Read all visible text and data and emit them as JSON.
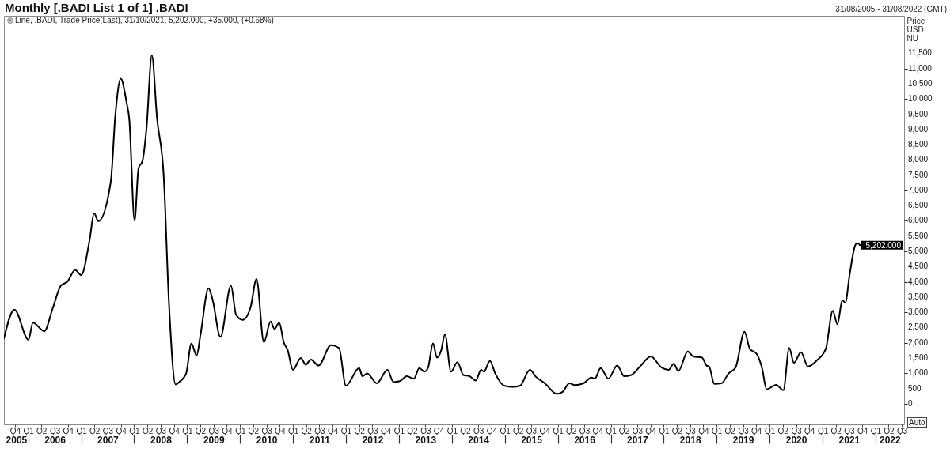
{
  "chart_data": {
    "type": "line",
    "title": "Monthly [.BADI List 1 of 1] .BADI",
    "subtitle": "Line, .BADI, Trade Price(Last), 31/10/2021, 5,202.000, +35.000, (+0.68%)",
    "ylabel": "Price USD NU",
    "annotations": [
      "31/08/2005 - 31/08/2022 (GMT)",
      "Auto",
      "5,202.000"
    ],
    "x": [
      "2005-08-31",
      "2005-11-11",
      "2006-02-16",
      "2006-03-19",
      "2006-06-05",
      "2006-08-03",
      "2006-09-27",
      "2006-11-11",
      "2007-01-04",
      "2007-02-15",
      "2007-04-14",
      "2007-05-15",
      "2007-06-13",
      "2007-09-07",
      "2007-10-08",
      "2007-11-15",
      "2007-12-25",
      "2008-01-12",
      "2008-02-18",
      "2008-03-16",
      "2008-04-13",
      "2008-05-10",
      "2008-06-16",
      "2008-07-22",
      "2008-09-06",
      "2008-10-12",
      "2008-11-27",
      "2008-12-24",
      "2009-02-07",
      "2009-03-16",
      "2009-04-21",
      "2009-05-18",
      "2009-07-12",
      "2009-08-08",
      "2009-10-02",
      "2009-12-14",
      "2010-01-18",
      "2010-03-05",
      "2010-04-29",
      "2010-06-08",
      "2010-07-29",
      "2010-09-13",
      "2010-10-10",
      "2010-11-12",
      "2010-12-13",
      "2011-01-09",
      "2011-02-14",
      "2011-04-10",
      "2011-05-14",
      "2011-06-18",
      "2011-08-10",
      "2011-11-04",
      "2011-12-29",
      "2012-02-15",
      "2012-05-16",
      "2012-06-08",
      "2012-07-11",
      "2012-09-15",
      "2012-11-27",
      "2013-01-08",
      "2013-02-20",
      "2013-04-10",
      "2013-05-29",
      "2013-07-05",
      "2013-08-10",
      "2013-09-03",
      "2013-10-08",
      "2013-11-04",
      "2013-12-03",
      "2013-12-29",
      "2014-02-09",
      "2014-03-25",
      "2014-05-05",
      "2014-06-18",
      "2014-07-30",
      "2014-09-04",
      "2014-09-24",
      "2014-11-04",
      "2014-12-11",
      "2015-02-10",
      "2015-04-12",
      "2015-05-31",
      "2015-08-07",
      "2015-09-18",
      "2015-11-18",
      "2016-02-10",
      "2016-03-18",
      "2016-05-06",
      "2016-06-11",
      "2016-08-11",
      "2016-10-04",
      "2016-10-28",
      "2016-12-07",
      "2017-01-29",
      "2017-03-31",
      "2017-05-19",
      "2017-07-06",
      "2017-09-05",
      "2017-11-18",
      "2018-01-30",
      "2018-03-20",
      "2018-04-25",
      "2018-05-27",
      "2018-07-31",
      "2018-09-06",
      "2018-11-06",
      "2018-12-08",
      "2018-12-25",
      "2019-01-30",
      "2019-03-21",
      "2019-05-08",
      "2019-06-26",
      "2019-08-26",
      "2019-10-02",
      "2019-11-19",
      "2019-12-25",
      "2020-01-26",
      "2020-04-01",
      "2020-05-20",
      "2020-06-30",
      "2020-08-01",
      "2020-09-19",
      "2020-11-06",
      "2021-01-06",
      "2021-03-09",
      "2021-04-26",
      "2021-05-28",
      "2021-07-01",
      "2021-07-21",
      "2021-08-21",
      "2021-09-26",
      "2021-10-11",
      "2021-10-31"
    ],
    "series": [
      {
        "color": "#000000",
        "values": [
          2140,
          3090,
          2100,
          2660,
          2380,
          3140,
          3870,
          4000,
          4390,
          4220,
          5380,
          6250,
          5990,
          7290,
          9450,
          10670,
          9880,
          9360,
          6010,
          7720,
          7980,
          9020,
          11430,
          9360,
          7460,
          3310,
          630,
          720,
          980,
          1970,
          1580,
          2270,
          3790,
          3440,
          2190,
          3870,
          2920,
          2750,
          3180,
          4090,
          2010,
          2700,
          2450,
          2660,
          2010,
          1760,
          1110,
          1500,
          1280,
          1450,
          1250,
          1920,
          1830,
          590,
          1170,
          900,
          990,
          670,
          1110,
          710,
          740,
          900,
          820,
          1170,
          1050,
          1170,
          1980,
          1510,
          1750,
          2270,
          1050,
          1360,
          940,
          900,
          760,
          1110,
          1050,
          1400,
          990,
          590,
          550,
          590,
          1110,
          880,
          670,
          320,
          380,
          670,
          610,
          670,
          860,
          820,
          1170,
          820,
          1250,
          900,
          940,
          1220,
          1550,
          1190,
          1110,
          1310,
          1070,
          1710,
          1550,
          1510,
          1250,
          1220,
          650,
          670,
          990,
          1190,
          2360,
          1800,
          1630,
          1170,
          470,
          620,
          440,
          1830,
          1340,
          1690,
          1220,
          1420,
          1800,
          3050,
          2610,
          3400,
          3310,
          4260,
          5170,
          5270,
          5202
        ]
      }
    ],
    "xlim": [
      "2005-08-31",
      "2022-08-31"
    ],
    "xticks": [
      {
        "value": "2005-11-15",
        "label": "Q4"
      },
      {
        "value": "2006-02-15",
        "label": "Q1"
      },
      {
        "value": "2006-05-16",
        "label": "Q2"
      },
      {
        "value": "2006-08-16",
        "label": "Q3"
      },
      {
        "value": "2006-11-15",
        "label": "Q4"
      },
      {
        "value": "2007-02-15",
        "label": "Q1"
      },
      {
        "value": "2007-05-16",
        "label": "Q2"
      },
      {
        "value": "2007-08-16",
        "label": "Q3"
      },
      {
        "value": "2007-11-15",
        "label": "Q4"
      },
      {
        "value": "2008-02-15",
        "label": "Q1"
      },
      {
        "value": "2008-05-16",
        "label": "Q2"
      },
      {
        "value": "2008-08-16",
        "label": "Q3"
      },
      {
        "value": "2008-11-15",
        "label": "Q4"
      },
      {
        "value": "2009-02-15",
        "label": "Q1"
      },
      {
        "value": "2009-05-16",
        "label": "Q2"
      },
      {
        "value": "2009-08-16",
        "label": "Q3"
      },
      {
        "value": "2009-11-15",
        "label": "Q4"
      },
      {
        "value": "2010-02-15",
        "label": "Q1"
      },
      {
        "value": "2010-05-16",
        "label": "Q2"
      },
      {
        "value": "2010-08-16",
        "label": "Q3"
      },
      {
        "value": "2010-11-15",
        "label": "Q4"
      },
      {
        "value": "2011-02-15",
        "label": "Q1"
      },
      {
        "value": "2011-05-16",
        "label": "Q2"
      },
      {
        "value": "2011-08-16",
        "label": "Q3"
      },
      {
        "value": "2011-11-15",
        "label": "Q4"
      },
      {
        "value": "2012-02-15",
        "label": "Q1"
      },
      {
        "value": "2012-05-16",
        "label": "Q2"
      },
      {
        "value": "2012-08-16",
        "label": "Q3"
      },
      {
        "value": "2012-11-15",
        "label": "Q4"
      },
      {
        "value": "2013-02-15",
        "label": "Q1"
      },
      {
        "value": "2013-05-16",
        "label": "Q2"
      },
      {
        "value": "2013-08-16",
        "label": "Q3"
      },
      {
        "value": "2013-11-15",
        "label": "Q4"
      },
      {
        "value": "2014-02-15",
        "label": "Q1"
      },
      {
        "value": "2014-05-16",
        "label": "Q2"
      },
      {
        "value": "2014-08-16",
        "label": "Q3"
      },
      {
        "value": "2014-11-15",
        "label": "Q4"
      },
      {
        "value": "2015-02-15",
        "label": "Q1"
      },
      {
        "value": "2015-05-16",
        "label": "Q2"
      },
      {
        "value": "2015-08-16",
        "label": "Q3"
      },
      {
        "value": "2015-11-15",
        "label": "Q4"
      },
      {
        "value": "2016-02-15",
        "label": "Q1"
      },
      {
        "value": "2016-05-16",
        "label": "Q2"
      },
      {
        "value": "2016-08-16",
        "label": "Q3"
      },
      {
        "value": "2016-11-15",
        "label": "Q4"
      },
      {
        "value": "2017-02-15",
        "label": "Q1"
      },
      {
        "value": "2017-05-16",
        "label": "Q2"
      },
      {
        "value": "2017-08-16",
        "label": "Q3"
      },
      {
        "value": "2017-11-15",
        "label": "Q4"
      },
      {
        "value": "2018-02-15",
        "label": "Q1"
      },
      {
        "value": "2018-05-16",
        "label": "Q2"
      },
      {
        "value": "2018-08-16",
        "label": "Q3"
      },
      {
        "value": "2018-11-15",
        "label": "Q4"
      },
      {
        "value": "2019-02-15",
        "label": "Q1"
      },
      {
        "value": "2019-05-16",
        "label": "Q2"
      },
      {
        "value": "2019-08-16",
        "label": "Q3"
      },
      {
        "value": "2019-11-15",
        "label": "Q4"
      },
      {
        "value": "2020-02-15",
        "label": "Q1"
      },
      {
        "value": "2020-05-16",
        "label": "Q2"
      },
      {
        "value": "2020-08-16",
        "label": "Q3"
      },
      {
        "value": "2020-11-15",
        "label": "Q4"
      },
      {
        "value": "2021-02-15",
        "label": "Q1"
      },
      {
        "value": "2021-05-16",
        "label": "Q2"
      },
      {
        "value": "2021-08-16",
        "label": "Q3"
      },
      {
        "value": "2021-11-15",
        "label": "Q4"
      },
      {
        "value": "2022-02-15",
        "label": "Q1"
      },
      {
        "value": "2022-05-16",
        "label": "Q2"
      },
      {
        "value": "2022-08-16",
        "label": "Q3"
      }
    ],
    "x2lim": [
      "2005-08-31",
      "2022-08-31"
    ],
    "x2ticks": [
      {
        "value": "2005-11-23",
        "label": "2005"
      },
      {
        "value": "2006-02-15",
        "label": null
      },
      {
        "value": "2006-08-16",
        "label": "2006"
      },
      {
        "value": "2007-02-15",
        "label": null
      },
      {
        "value": "2007-08-16",
        "label": "2007"
      },
      {
        "value": "2008-02-15",
        "label": null
      },
      {
        "value": "2008-08-16",
        "label": "2008"
      },
      {
        "value": "2009-02-15",
        "label": null
      },
      {
        "value": "2009-08-16",
        "label": "2009"
      },
      {
        "value": "2010-02-15",
        "label": null
      },
      {
        "value": "2010-08-16",
        "label": "2010"
      },
      {
        "value": "2011-02-15",
        "label": null
      },
      {
        "value": "2011-08-16",
        "label": "2011"
      },
      {
        "value": "2012-02-15",
        "label": null
      },
      {
        "value": "2012-08-16",
        "label": "2012"
      },
      {
        "value": "2013-02-15",
        "label": null
      },
      {
        "value": "2013-08-16",
        "label": "2013"
      },
      {
        "value": "2014-02-15",
        "label": null
      },
      {
        "value": "2014-08-16",
        "label": "2014"
      },
      {
        "value": "2015-02-15",
        "label": null
      },
      {
        "value": "2015-08-16",
        "label": "2015"
      },
      {
        "value": "2016-02-15",
        "label": null
      },
      {
        "value": "2016-08-16",
        "label": "2016"
      },
      {
        "value": "2017-02-15",
        "label": null
      },
      {
        "value": "2017-08-16",
        "label": "2017"
      },
      {
        "value": "2018-02-15",
        "label": null
      },
      {
        "value": "2018-08-16",
        "label": "2018"
      },
      {
        "value": "2019-02-15",
        "label": null
      },
      {
        "value": "2019-08-16",
        "label": "2019"
      },
      {
        "value": "2020-02-15",
        "label": null
      },
      {
        "value": "2020-08-16",
        "label": "2020"
      },
      {
        "value": "2021-02-15",
        "label": null
      },
      {
        "value": "2021-08-16",
        "label": "2021"
      },
      {
        "value": "2022-02-15",
        "label": null
      },
      {
        "value": "2022-05-24",
        "label": "2022"
      }
    ],
    "ylim": [
      -680,
      12730
    ],
    "yticks": [
      0,
      500,
      {
        "value": 1000,
        "label": "1,000"
      },
      {
        "value": 1500,
        "label": "1,500"
      },
      {
        "value": 2000,
        "label": "2,000"
      },
      {
        "value": 2500,
        "label": "2,500"
      },
      {
        "value": 3000,
        "label": "3,000"
      },
      {
        "value": 3500,
        "label": "3,500"
      },
      {
        "value": 4000,
        "label": "4,000"
      },
      {
        "value": 4500,
        "label": "4,500"
      },
      {
        "value": 5000,
        "label": "5,000"
      },
      {
        "value": 5500,
        "label": "5,500"
      },
      {
        "value": 6000,
        "label": "6,000"
      },
      {
        "value": 6500,
        "label": "6,500"
      },
      {
        "value": 7000,
        "label": "7,000"
      },
      {
        "value": 7500,
        "label": "7,500"
      },
      {
        "value": 8000,
        "label": "8,000"
      },
      {
        "value": 8500,
        "label": "8,500"
      },
      {
        "value": 9000,
        "label": "9,000"
      },
      {
        "value": 9500,
        "label": "9,500"
      },
      {
        "value": 10000,
        "label": "10,000"
      },
      {
        "value": 10500,
        "label": "10,500"
      },
      {
        "value": 11000,
        "label": "11,000"
      },
      {
        "value": 11500,
        "label": "11,500"
      }
    ]
  }
}
